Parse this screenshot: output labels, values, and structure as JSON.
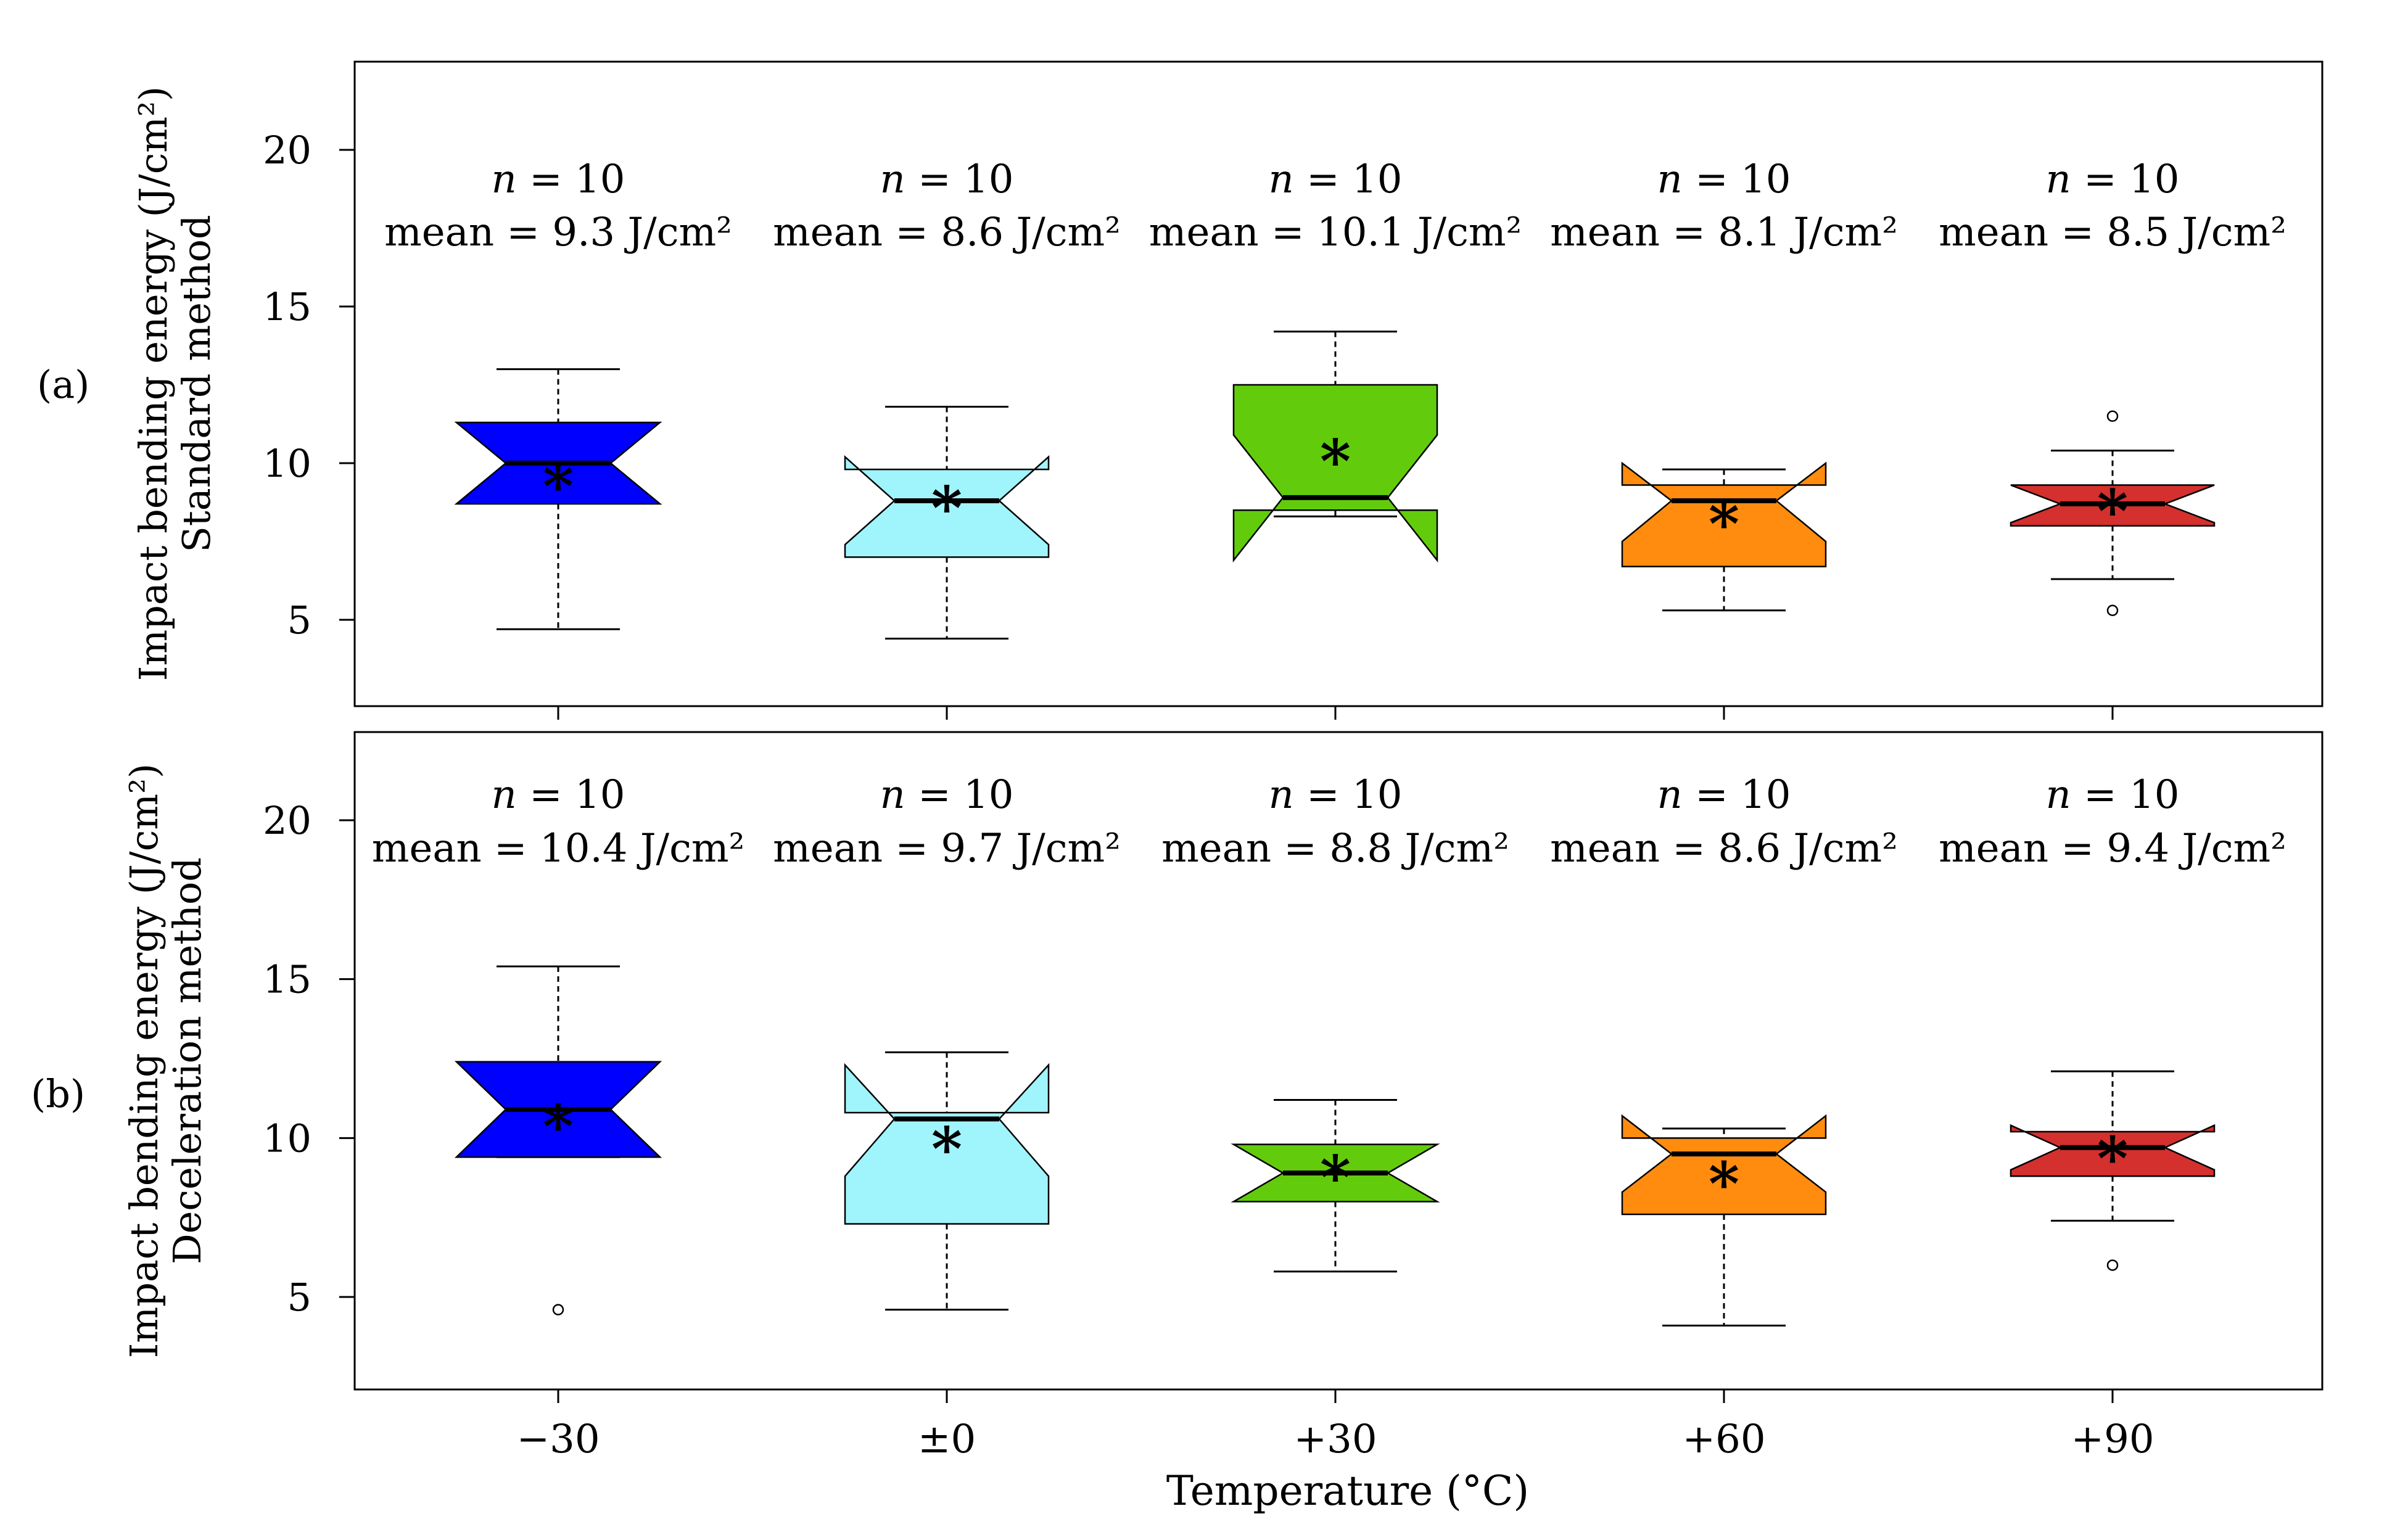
{
  "chart_data": {
    "type": "boxplot",
    "xlabel": "Temperature (°C)",
    "categories": [
      "−30",
      "±0",
      "+30",
      "+60",
      "+90"
    ],
    "colors": [
      "#0000ff",
      "#a0f4fc",
      "#62cc0c",
      "#ff8c0e",
      "#d3302e"
    ],
    "yticks": [
      5,
      10,
      15,
      20
    ],
    "ylim": [
      2.2,
      22.5
    ],
    "mean_marker": "*",
    "panels": [
      {
        "panel_label": "(a)",
        "ylabel_line1": "Impact bending energy  (J/cm²)",
        "ylabel_line2": "Standard method",
        "groups": [
          {
            "n_label": "n",
            "n_text": " = 10",
            "mean_label": "mean = 9.3 J/cm²",
            "min": 4.7,
            "q1": 8.7,
            "median": 10.0,
            "q3": 11.3,
            "max": 13.0,
            "notch_low": 8.7,
            "notch_high": 11.3,
            "mean": 9.3,
            "outliers": []
          },
          {
            "n_label": "n",
            "n_text": " = 10",
            "mean_label": "mean = 8.6 J/cm²",
            "min": 4.4,
            "q1": 7.0,
            "median": 8.8,
            "q3": 9.8,
            "max": 11.8,
            "notch_low": 7.4,
            "notch_high": 10.2,
            "mean": 8.6,
            "outliers": []
          },
          {
            "n_label": "n",
            "n_text": " = 10",
            "mean_label": "mean = 10.1 J/cm²",
            "min": 8.3,
            "q1": 8.5,
            "median": 8.9,
            "q3": 12.5,
            "max": 14.2,
            "notch_low": 6.9,
            "notch_high": 10.9,
            "mean": 10.1,
            "outliers": []
          },
          {
            "n_label": "n",
            "n_text": " = 10",
            "mean_label": "mean = 8.1 J/cm²",
            "min": 5.3,
            "q1": 6.7,
            "median": 8.8,
            "q3": 9.3,
            "max": 9.8,
            "notch_low": 7.5,
            "notch_high": 10.0,
            "mean": 8.1,
            "outliers": []
          },
          {
            "n_label": "n",
            "n_text": " = 10",
            "mean_label": "mean = 8.5 J/cm²",
            "min": 6.3,
            "q1": 8.0,
            "median": 8.7,
            "q3": 9.3,
            "max": 10.4,
            "notch_low": 8.1,
            "notch_high": 9.3,
            "mean": 8.5,
            "outliers": [
              5.3,
              11.5
            ]
          }
        ]
      },
      {
        "panel_label": "(b)",
        "ylabel_line1": "Impact bending energy  (J/cm²)",
        "ylabel_line2": "Deceleration method",
        "groups": [
          {
            "n_label": "n",
            "n_text": " = 10",
            "mean_label": "mean = 10.4 J/cm²",
            "min": 9.4,
            "q1": 9.4,
            "median": 10.9,
            "q3": 12.4,
            "max": 15.4,
            "notch_low": 9.4,
            "notch_high": 12.4,
            "mean": 10.4,
            "outliers": [
              4.6
            ]
          },
          {
            "n_label": "n",
            "n_text": " = 10",
            "mean_label": "mean = 9.7 J/cm²",
            "min": 4.6,
            "q1": 7.3,
            "median": 10.6,
            "q3": 10.8,
            "max": 12.7,
            "notch_low": 8.8,
            "notch_high": 12.3,
            "mean": 9.7,
            "outliers": []
          },
          {
            "n_label": "n",
            "n_text": " = 10",
            "mean_label": "mean = 8.8 J/cm²",
            "min": 5.8,
            "q1": 8.0,
            "median": 8.9,
            "q3": 9.8,
            "max": 11.2,
            "notch_low": 8.0,
            "notch_high": 9.8,
            "mean": 8.8,
            "outliers": []
          },
          {
            "n_label": "n",
            "n_text": " = 10",
            "mean_label": "mean = 8.6 J/cm²",
            "min": 4.1,
            "q1": 7.6,
            "median": 9.5,
            "q3": 10.0,
            "max": 10.3,
            "notch_low": 8.3,
            "notch_high": 10.7,
            "mean": 8.6,
            "outliers": []
          },
          {
            "n_label": "n",
            "n_text": " = 10",
            "mean_label": "mean = 9.4 J/cm²",
            "min": 7.4,
            "q1": 8.8,
            "median": 9.7,
            "q3": 10.2,
            "max": 12.1,
            "notch_low": 9.0,
            "notch_high": 10.4,
            "mean": 9.4,
            "outliers": [
              6.0
            ]
          }
        ]
      }
    ]
  }
}
